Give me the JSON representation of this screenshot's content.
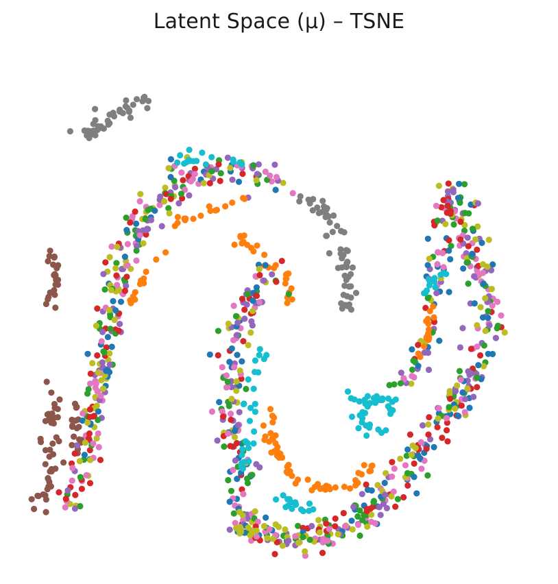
{
  "chart_data": {
    "type": "scatter",
    "title": "Latent Space (μ) – TSNE",
    "xlabel": "",
    "ylabel": "",
    "axes_visible": false,
    "xlim": [
      0,
      100
    ],
    "ylim": [
      0,
      100
    ],
    "legend": "none",
    "point_color_hint": "tab10 palette by class",
    "palette": [
      "#1f77b4",
      "#ff7f0e",
      "#2ca02c",
      "#d62728",
      "#9467bd",
      "#8c564b",
      "#e377c2",
      "#7f7f7f",
      "#bcbd22",
      "#17becf"
    ],
    "mixed_classes": [
      0,
      2,
      3,
      4,
      6,
      8
    ],
    "clusters": [
      {
        "name": "gray-top-left",
        "class": 7,
        "path": [
          [
            11,
            84
          ],
          [
            16,
            87
          ],
          [
            21,
            90
          ],
          [
            24,
            92
          ]
        ],
        "n": 40,
        "spread": 1.0
      },
      {
        "name": "brown-left-upper",
        "class": 5,
        "path": [
          [
            5,
            61
          ],
          [
            6,
            55
          ],
          [
            5,
            50
          ]
        ],
        "n": 26,
        "spread": 0.7
      },
      {
        "name": "brown-left-lower",
        "class": 5,
        "path": [
          [
            4,
            34
          ],
          [
            5,
            29
          ],
          [
            4,
            25
          ],
          [
            5,
            20
          ],
          [
            4,
            14
          ],
          [
            2,
            10
          ]
        ],
        "n": 46,
        "spread": 1.0
      },
      {
        "name": "brown-inner-left",
        "class": 5,
        "path": [
          [
            10,
            32
          ],
          [
            9,
            27
          ],
          [
            10,
            24
          ],
          [
            9,
            20
          ]
        ],
        "n": 18,
        "spread": 0.7
      },
      {
        "name": "left-arc",
        "class": -1,
        "path": [
          [
            8,
            10
          ],
          [
            11,
            18
          ],
          [
            13,
            28
          ],
          [
            15,
            38
          ],
          [
            17,
            48
          ],
          [
            18,
            56
          ],
          [
            20,
            62
          ],
          [
            24,
            68
          ],
          [
            29,
            74
          ],
          [
            35,
            77
          ],
          [
            42,
            78
          ],
          [
            48,
            76
          ],
          [
            50,
            72
          ]
        ],
        "n": 300,
        "spread": 1.4
      },
      {
        "name": "left-arc-cyan",
        "class": 9,
        "path": [
          [
            30,
            79
          ],
          [
            37,
            80
          ],
          [
            44,
            78
          ]
        ],
        "n": 16,
        "spread": 0.7
      },
      {
        "name": "orange-arc-top",
        "class": 1,
        "path": [
          [
            29,
            66
          ],
          [
            33,
            68
          ],
          [
            38,
            70
          ],
          [
            43,
            71
          ]
        ],
        "n": 16,
        "spread": 0.4
      },
      {
        "name": "orange-arc-mid",
        "class": 1,
        "path": [
          [
            42,
            64
          ],
          [
            48,
            59
          ],
          [
            51,
            55
          ],
          [
            52,
            50
          ]
        ],
        "n": 26,
        "spread": 0.7
      },
      {
        "name": "orange-left",
        "class": 1,
        "path": [
          [
            27,
            62
          ],
          [
            23,
            56
          ],
          [
            21,
            52
          ],
          [
            20,
            49
          ]
        ],
        "n": 12,
        "spread": 0.4
      },
      {
        "name": "gray-mid",
        "class": 7,
        "path": [
          [
            54,
            72
          ],
          [
            58,
            70
          ],
          [
            61,
            66
          ],
          [
            62,
            62
          ],
          [
            63,
            58
          ],
          [
            64,
            53
          ],
          [
            64,
            48
          ]
        ],
        "n": 55,
        "spread": 0.9
      },
      {
        "name": "middle-column",
        "class": -1,
        "path": [
          [
            48,
            58
          ],
          [
            45,
            53
          ],
          [
            42,
            46
          ],
          [
            41,
            40
          ],
          [
            40,
            34
          ],
          [
            40,
            28
          ],
          [
            41,
            22
          ],
          [
            43,
            17
          ],
          [
            45,
            13
          ]
        ],
        "n": 150,
        "spread": 1.5
      },
      {
        "name": "cyan-middle",
        "class": 9,
        "path": [
          [
            47,
            41
          ],
          [
            45,
            36
          ],
          [
            45,
            32
          ],
          [
            44,
            26
          ],
          [
            44,
            22
          ],
          [
            42,
            16
          ]
        ],
        "n": 26,
        "spread": 0.8
      },
      {
        "name": "orange-c-curve",
        "class": 1,
        "path": [
          [
            48,
            29
          ],
          [
            48,
            24
          ],
          [
            50,
            20
          ],
          [
            53,
            16
          ],
          [
            57,
            14
          ],
          [
            60,
            13
          ],
          [
            64,
            14
          ],
          [
            67,
            16
          ],
          [
            69,
            19
          ]
        ],
        "n": 60,
        "spread": 0.7
      },
      {
        "name": "right-arc",
        "class": -1,
        "path": [
          [
            85,
            73
          ],
          [
            87,
            66
          ],
          [
            90,
            58
          ],
          [
            92,
            50
          ],
          [
            90,
            41
          ],
          [
            87,
            33
          ],
          [
            82,
            26
          ],
          [
            77,
            19
          ],
          [
            72,
            13
          ],
          [
            67,
            8
          ]
        ],
        "n": 240,
        "spread": 1.8
      },
      {
        "name": "right-arc-inner",
        "class": -1,
        "path": [
          [
            84,
            74
          ],
          [
            83,
            66
          ],
          [
            82,
            57
          ],
          [
            81,
            48
          ],
          [
            78,
            40
          ],
          [
            74,
            33
          ]
        ],
        "n": 90,
        "spread": 1.4
      },
      {
        "name": "orange-right",
        "class": 1,
        "path": [
          [
            81,
            51
          ],
          [
            80,
            46
          ],
          [
            78,
            40
          ]
        ],
        "n": 16,
        "spread": 0.5
      },
      {
        "name": "cyan-right-diag",
        "class": 9,
        "path": [
          [
            77,
            51
          ],
          [
            80,
            54
          ],
          [
            83,
            57
          ]
        ],
        "n": 12,
        "spread": 0.4
      },
      {
        "name": "cyan-lower-mid",
        "class": 9,
        "path": [
          [
            63,
            33
          ],
          [
            66,
            31
          ],
          [
            70,
            31
          ],
          [
            73,
            30
          ],
          [
            72,
            27
          ],
          [
            70,
            25
          ],
          [
            68,
            25
          ],
          [
            66,
            28
          ],
          [
            64,
            26
          ]
        ],
        "n": 40,
        "spread": 0.7
      },
      {
        "name": "cyan-bottom",
        "class": 9,
        "path": [
          [
            50,
            11
          ],
          [
            54,
            10
          ],
          [
            58,
            9
          ]
        ],
        "n": 16,
        "spread": 0.7
      },
      {
        "name": "bottom-arc",
        "class": -1,
        "path": [
          [
            42,
            10
          ],
          [
            44,
            6
          ],
          [
            48,
            4
          ],
          [
            53,
            3
          ],
          [
            58,
            4
          ],
          [
            62,
            5
          ],
          [
            65,
            7
          ],
          [
            68,
            9
          ],
          [
            71,
            11
          ]
        ],
        "n": 150,
        "spread": 1.6
      },
      {
        "name": "olive-left-bottom",
        "class": 8,
        "path": [
          [
            41,
            6
          ],
          [
            44,
            4
          ],
          [
            46,
            5
          ]
        ],
        "n": 12,
        "spread": 0.6
      }
    ]
  }
}
